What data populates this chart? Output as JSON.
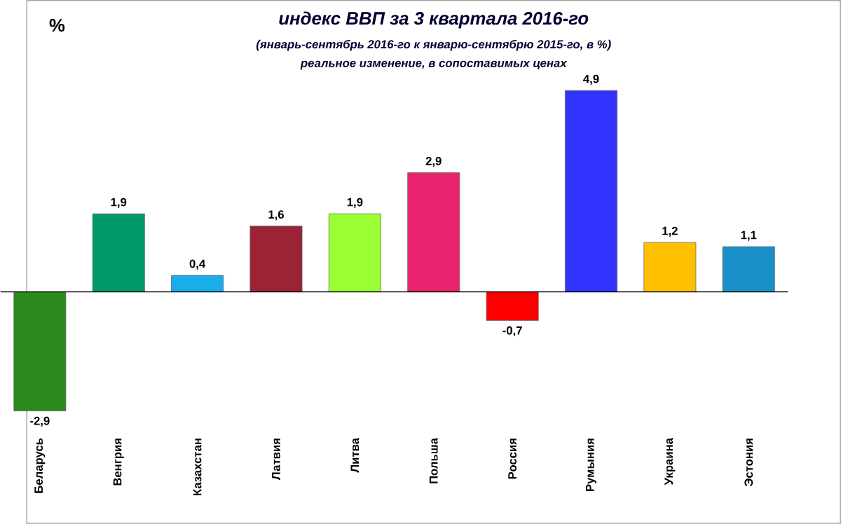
{
  "chart_data": {
    "type": "bar",
    "title": "индекс ВВП за 3 квартала 2016-го",
    "subtitle": "(январь-сентябрь 2016-го к январю-сентябрю 2015-го, в %)",
    "annotations": [
      "реальное изменение, в сопоставимых ценах"
    ],
    "ylabel": "%",
    "categories": [
      "Беларусь",
      "Венгрия",
      "Казахстан",
      "Латвия",
      "Литва",
      "Польша",
      "Россия",
      "Румыния",
      "Украина",
      "Эстония"
    ],
    "values": [
      -2.9,
      1.9,
      0.4,
      1.6,
      1.9,
      2.9,
      -0.7,
      4.9,
      1.2,
      1.1
    ],
    "value_labels": [
      "-2,9",
      "1,9",
      "0,4",
      "1,6",
      "1,9",
      "2,9",
      "-0,7",
      "4,9",
      "1,2",
      "1,1"
    ],
    "colors": [
      "#2b8a1c",
      "#00996a",
      "#1aaee8",
      "#9b2335",
      "#99ff33",
      "#e8246e",
      "#ff0000",
      "#3333ff",
      "#ffc000",
      "#1a90c8"
    ],
    "data_labels": false
  }
}
